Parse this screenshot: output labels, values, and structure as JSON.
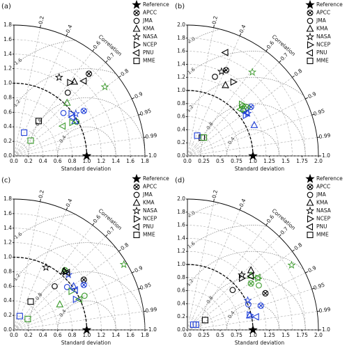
{
  "chart_data": [
    {
      "type": "taylor",
      "panel_label": "(a)",
      "xlabel": "Standard deviation",
      "corr_label": "Correlation",
      "legend": "upper right",
      "grid": true,
      "xlim": [
        0,
        1.8
      ],
      "ylim": [
        0,
        1.8
      ],
      "xticks": [
        {
          "value": 0,
          "label": "0.0"
        },
        0.2,
        0.4,
        0.6,
        0.8,
        {
          "value": 1,
          "label": "1.0"
        },
        1.2,
        1.4,
        1.6,
        1.8
      ],
      "yticks": [
        {
          "value": 0,
          "label": "0.0"
        },
        0.2,
        0.4,
        0.6,
        0.8,
        {
          "value": 1,
          "label": "1.0"
        },
        1.2,
        1.4,
        1.6,
        1.8
      ],
      "corr_ticks": [
        0.2,
        0.4,
        0.6,
        0.7,
        0.8,
        0.9,
        0.95,
        0.99,
        {
          "value": 1,
          "label": "1.0"
        }
      ],
      "rms_ticks": [
        0.4,
        0.8,
        1.2,
        1.6
      ],
      "series": [
        {
          "name": "Reference",
          "marker": "star-filled",
          "x": [
            1
          ],
          "y": [
            0
          ],
          "colors": [
            "#000000"
          ]
        },
        {
          "name": "APCC",
          "marker": "crossed-circle",
          "x": [
            1.03,
            0.96
          ],
          "y": [
            1.13,
            0.62
          ],
          "colors": [
            "#000000",
            "#1f3fd8"
          ]
        },
        {
          "name": "JMA",
          "marker": "circle",
          "x": [
            0.74,
            0.68,
            0.86
          ],
          "y": [
            0.87,
            0.59,
            0.47
          ],
          "colors": [
            "#000000",
            "#1f3fd8",
            "#3a9a2a"
          ]
        },
        {
          "name": "KMA",
          "marker": "triangle-up",
          "x": [
            0.83,
            0.73,
            0.84
          ],
          "y": [
            1.02,
            0.73,
            0.48
          ],
          "colors": [
            "#000000",
            "#3a9a2a",
            "#1f3fd8"
          ]
        },
        {
          "name": "NASA",
          "marker": "star",
          "x": [
            0.62,
            1.25,
            0.85
          ],
          "y": [
            1.08,
            0.95,
            0.58
          ],
          "colors": [
            "#000000",
            "#3a9a2a",
            "#1f3fd8"
          ]
        },
        {
          "name": "NCEP",
          "marker": "triangle-right",
          "x": [
            0.77,
            0.79,
            0.8
          ],
          "y": [
            1.01,
            0.58,
            0.46
          ],
          "colors": [
            "#000000",
            "#1f3fd8",
            "#3a9a2a"
          ]
        },
        {
          "name": "PNU",
          "marker": "triangle-left",
          "x": [
            0.96,
            0.67,
            0.8
          ],
          "y": [
            1.03,
            0.41,
            0.53
          ],
          "colors": [
            "#000000",
            "#3a9a2a",
            "#1f3fd8"
          ]
        },
        {
          "name": "MME",
          "marker": "square",
          "x": [
            0.34,
            0.14,
            0.23
          ],
          "y": [
            0.48,
            0.32,
            0.21
          ],
          "colors": [
            "#000000",
            "#1f3fd8",
            "#3a9a2a"
          ]
        }
      ]
    },
    {
      "type": "taylor",
      "panel_label": "(b)",
      "xlabel": "Standard deviation",
      "corr_label": "Correlation",
      "legend": "upper right",
      "grid": true,
      "xlim": [
        0,
        2
      ],
      "ylim": [
        0,
        2
      ],
      "xticks": [
        {
          "value": 0,
          "label": "0.0"
        },
        0.25,
        0.5,
        0.75,
        {
          "value": 1,
          "label": "1.0"
        },
        1.25,
        1.5,
        1.75,
        {
          "value": 2,
          "label": "2.0"
        }
      ],
      "yticks": [
        {
          "value": 0,
          "label": "0.0"
        },
        0.2,
        0.4,
        0.6,
        0.8,
        {
          "value": 1,
          "label": "1.0"
        },
        1.2,
        1.4,
        1.6,
        1.8,
        {
          "value": 2,
          "label": "2.0"
        }
      ],
      "corr_ticks": [
        0.2,
        0.4,
        0.6,
        0.7,
        0.8,
        0.9,
        0.95,
        0.99,
        {
          "value": 1,
          "label": "1.0"
        }
      ],
      "rms_ticks": [
        0.4,
        0.8,
        1.2,
        1.6,
        {
          "value": 2,
          "label": "2.0"
        }
      ],
      "series": [
        {
          "name": "Reference",
          "marker": "star-filled",
          "x": [
            1
          ],
          "y": [
            0
          ],
          "colors": [
            "#000000"
          ]
        },
        {
          "name": "APCC",
          "marker": "crossed-circle",
          "x": [
            0.59,
            0.97,
            0.91
          ],
          "y": [
            1.31,
            0.75,
            0.74
          ],
          "colors": [
            "#000000",
            "#1f3fd8",
            "#3a9a2a"
          ]
        },
        {
          "name": "JMA",
          "marker": "circle",
          "x": [
            0.42,
            0.86,
            0.84
          ],
          "y": [
            1.21,
            0.69,
            0.76
          ],
          "colors": [
            "#000000",
            "#1f3fd8",
            "#3a9a2a"
          ]
        },
        {
          "name": "KMA",
          "marker": "triangle-up",
          "x": [
            0.58,
            0.85,
            1.02
          ],
          "y": [
            1.08,
            0.72,
            0.47
          ],
          "colors": [
            "#000000",
            "#3a9a2a",
            "#1f3fd8"
          ]
        },
        {
          "name": "NASA",
          "marker": "star",
          "x": [
            0.52,
            0.99,
            0.92
          ],
          "y": [
            1.29,
            1.28,
            0.65
          ],
          "colors": [
            "#000000",
            "#3a9a2a",
            "#1f3fd8"
          ]
        },
        {
          "name": "NCEP",
          "marker": "triangle-right",
          "x": [
            0.7,
            0.89,
            0.83
          ],
          "y": [
            1.13,
            0.62,
            0.79
          ],
          "colors": [
            "#000000",
            "#1f3fd8",
            "#3a9a2a"
          ]
        },
        {
          "name": "PNU",
          "marker": "triangle-left",
          "x": [
            0.58,
            0.9,
            0.81
          ],
          "y": [
            1.58,
            0.66,
            0.71
          ],
          "colors": [
            "#000000",
            "#1f3fd8",
            "#3a9a2a"
          ]
        },
        {
          "name": "MME",
          "marker": "square",
          "x": [
            0.22,
            0.15,
            0.25
          ],
          "y": [
            0.28,
            0.31,
            0.28
          ],
          "colors": [
            "#000000",
            "#1f3fd8",
            "#3a9a2a"
          ]
        }
      ]
    },
    {
      "type": "taylor",
      "panel_label": "(c)",
      "xlabel": "Standard deviation",
      "corr_label": "Correlation",
      "legend": "upper right",
      "grid": true,
      "xlim": [
        0,
        1.8
      ],
      "ylim": [
        0,
        1.8
      ],
      "xticks": [
        {
          "value": 0,
          "label": "0.0"
        },
        0.2,
        0.4,
        0.6,
        0.8,
        {
          "value": 1,
          "label": "1.0"
        },
        1.2,
        1.4,
        1.6,
        1.8
      ],
      "yticks": [
        {
          "value": 0,
          "label": "0.0"
        },
        0.2,
        0.4,
        0.6,
        0.8,
        {
          "value": 1,
          "label": "1.0"
        },
        1.2,
        1.4,
        1.6,
        1.8
      ],
      "corr_ticks": [
        0.2,
        0.4,
        0.6,
        0.7,
        0.8,
        0.9,
        0.95,
        0.99,
        {
          "value": 1,
          "label": "1.0"
        }
      ],
      "rms_ticks": [
        0.4,
        0.8,
        1.2,
        1.6
      ],
      "series": [
        {
          "name": "Reference",
          "marker": "star-filled",
          "x": [
            1
          ],
          "y": [
            0
          ],
          "colors": [
            "#000000"
          ]
        },
        {
          "name": "APCC",
          "marker": "crossed-circle",
          "x": [
            0.96,
            0.96,
            0.7
          ],
          "y": [
            0.69,
            0.62,
            0.82
          ],
          "colors": [
            "#000000",
            "#1f3fd8",
            "#3a9a2a"
          ]
        },
        {
          "name": "JMA",
          "marker": "circle",
          "x": [
            0.56,
            0.73,
            0.97
          ],
          "y": [
            0.6,
            0.59,
            0.47
          ],
          "colors": [
            "#000000",
            "#1f3fd8",
            "#3a9a2a"
          ]
        },
        {
          "name": "KMA",
          "marker": "triangle-up",
          "x": [
            0.69,
            0.63,
            0.82
          ],
          "y": [
            0.81,
            0.35,
            0.6
          ],
          "colors": [
            "#000000",
            "#3a9a2a",
            "#1f3fd8"
          ]
        },
        {
          "name": "NASA",
          "marker": "star",
          "x": [
            0.44,
            1.51,
            0.75
          ],
          "y": [
            0.86,
            0.9,
            0.76
          ],
          "colors": [
            "#000000",
            "#3a9a2a",
            "#1f3fd8"
          ]
        },
        {
          "name": "NCEP",
          "marker": "triangle-right",
          "x": [
            0.71,
            0.85,
            0.79
          ],
          "y": [
            0.8,
            0.42,
            0.53
          ],
          "colors": [
            "#000000",
            "#1f3fd8",
            "#3a9a2a"
          ]
        },
        {
          "name": "PNU",
          "marker": "triangle-left",
          "x": [
            0.73,
            0.9,
            0.84
          ],
          "y": [
            0.79,
            0.42,
            0.55
          ],
          "colors": [
            "#000000",
            "#3a9a2a",
            "#1f3fd8"
          ]
        },
        {
          "name": "MME",
          "marker": "square",
          "x": [
            0.23,
            0.08,
            0.19
          ],
          "y": [
            0.39,
            0.19,
            0.15
          ],
          "colors": [
            "#000000",
            "#1f3fd8",
            "#3a9a2a"
          ]
        }
      ]
    },
    {
      "type": "taylor",
      "panel_label": "(d)",
      "xlabel": "Standard deviation",
      "corr_label": "Correlation",
      "legend": "upper right",
      "grid": true,
      "xlim": [
        0,
        2
      ],
      "ylim": [
        0,
        2
      ],
      "xticks": [
        {
          "value": 0,
          "label": "0.0"
        },
        0.25,
        0.5,
        0.75,
        {
          "value": 1,
          "label": "1.0"
        },
        1.25,
        1.5,
        1.75,
        {
          "value": 2,
          "label": "2.0"
        }
      ],
      "yticks": [
        {
          "value": 0,
          "label": "0.0"
        },
        0.2,
        0.4,
        0.6,
        0.8,
        {
          "value": 1,
          "label": "1.0"
        },
        1.2,
        1.4,
        1.6,
        1.8,
        {
          "value": 2,
          "label": "2.0"
        }
      ],
      "corr_ticks": [
        0.2,
        0.4,
        0.6,
        0.7,
        0.8,
        0.9,
        0.95,
        0.99,
        {
          "value": 1,
          "label": "1.0"
        }
      ],
      "rms_ticks": [
        0.4,
        0.8,
        1.2,
        1.6,
        {
          "value": 2,
          "label": "2.0"
        }
      ],
      "series": [
        {
          "name": "Reference",
          "marker": "star-filled",
          "x": [
            1
          ],
          "y": [
            0
          ],
          "colors": [
            "#000000"
          ]
        },
        {
          "name": "APCC",
          "marker": "crossed-circle",
          "x": [
            1.19,
            1.12,
            0.97
          ],
          "y": [
            0.56,
            0.37,
            0.71
          ],
          "colors": [
            "#000000",
            "#1f3fd8",
            "#3a9a2a"
          ]
        },
        {
          "name": "JMA",
          "marker": "circle",
          "x": [
            0.69,
            1.09,
            0.93
          ],
          "y": [
            0.61,
            0.68,
            0.39
          ],
          "colors": [
            "#000000",
            "#3a9a2a",
            "#1f3fd8"
          ]
        },
        {
          "name": "KMA",
          "marker": "triangle-up",
          "x": [
            0.97,
            0.97,
            0.95
          ],
          "y": [
            0.91,
            0.83,
            0.22
          ],
          "colors": [
            "#000000",
            "#3a9a2a",
            "#1f3fd8"
          ]
        },
        {
          "name": "NASA",
          "marker": "star",
          "x": [
            0.83,
            1.59,
            0.92
          ],
          "y": [
            0.84,
            0.99,
            0.45
          ],
          "colors": [
            "#000000",
            "#3a9a2a",
            "#1f3fd8"
          ]
        },
        {
          "name": "NCEP",
          "marker": "triangle-right",
          "x": [
            0.83,
            0.95,
            1.08
          ],
          "y": [
            0.79,
            0.23,
            0.79
          ],
          "colors": [
            "#000000",
            "#1f3fd8",
            "#3a9a2a"
          ]
        },
        {
          "name": "PNU",
          "marker": "triangle-left",
          "x": [
            0.97,
            1.07,
            1.05
          ],
          "y": [
            0.82,
            0.8,
            0.2
          ],
          "colors": [
            "#000000",
            "#3a9a2a",
            "#1f3fd8"
          ]
        },
        {
          "name": "MME",
          "marker": "square",
          "x": [
            0.27,
            0.09,
            0.13
          ],
          "y": [
            0.15,
            0.08,
            0.08
          ],
          "colors": [
            "#000000",
            "#1f3fd8",
            "#1f3fd8"
          ]
        }
      ]
    }
  ]
}
